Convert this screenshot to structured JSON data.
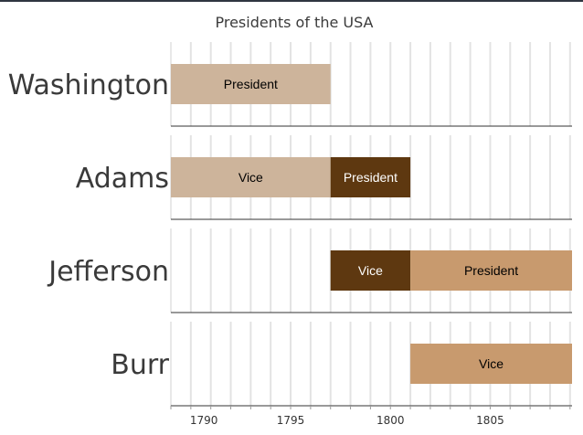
{
  "chart_data": {
    "type": "timeline",
    "title": "Presidents of the USA",
    "xlim": [
      1789,
      1809.1
    ],
    "x_ticks": [
      1790,
      1795,
      1800,
      1805
    ],
    "grid": true,
    "rows": [
      {
        "name": "Washington",
        "bars": [
          {
            "label": "President",
            "start": 1789,
            "end": 1797,
            "color": "#cdb49b",
            "text_color": "#000000"
          }
        ]
      },
      {
        "name": "Adams",
        "bars": [
          {
            "label": "Vice",
            "start": 1789,
            "end": 1797,
            "color": "#cdb49b",
            "text_color": "#000000"
          },
          {
            "label": "President",
            "start": 1797,
            "end": 1801,
            "color": "#5e3810",
            "text_color": "#ffffff"
          }
        ]
      },
      {
        "name": "Jefferson",
        "bars": [
          {
            "label": "Vice",
            "start": 1797,
            "end": 1801,
            "color": "#5e3810",
            "text_color": "#ffffff"
          },
          {
            "label": "President",
            "start": 1801,
            "end": 1809.1,
            "color": "#c89a6e",
            "text_color": "#000000"
          }
        ]
      },
      {
        "name": "Burr",
        "bars": [
          {
            "label": "Vice",
            "start": 1801,
            "end": 1809.1,
            "color": "#c89a6e",
            "text_color": "#000000"
          }
        ]
      }
    ]
  }
}
